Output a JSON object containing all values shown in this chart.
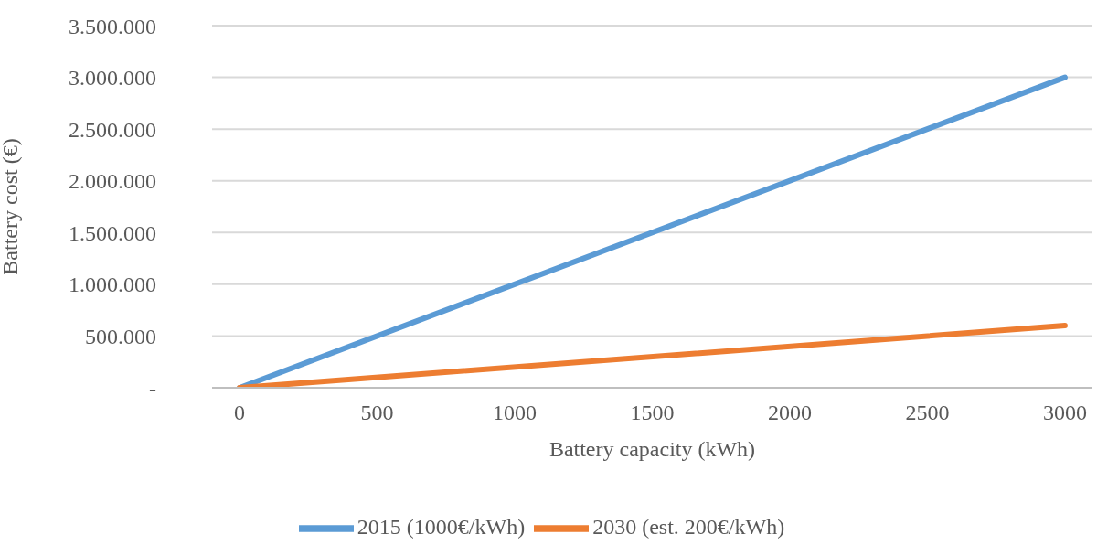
{
  "chart_data": {
    "type": "line",
    "xlabel": "Battery capacity (kWh)",
    "ylabel": "Battery cost (€)",
    "x": [
      0,
      3000
    ],
    "series": [
      {
        "name": "2015 (1000€/kWh)",
        "color": "#5b9bd5",
        "values": [
          0,
          3000000
        ]
      },
      {
        "name": "2030 (est. 200€/kWh)",
        "color": "#ed7d31",
        "values": [
          0,
          600000
        ]
      }
    ],
    "xlim": [
      -100,
      3100
    ],
    "xticks": [
      0,
      500,
      1000,
      1500,
      2000,
      2500,
      3000
    ],
    "ylim": [
      0,
      3500000
    ],
    "yticks": [
      {
        "value": 0,
        "label": "-"
      },
      {
        "value": 500000,
        "label": "500.000"
      },
      {
        "value": 1000000,
        "label": "1.000.000"
      },
      {
        "value": 1500000,
        "label": "1.500.000"
      },
      {
        "value": 2000000,
        "label": "2.000.000"
      },
      {
        "value": 2500000,
        "label": "2.500.000"
      },
      {
        "value": 3000000,
        "label": "3.000.000"
      },
      {
        "value": 3500000,
        "label": "3.500.000"
      }
    ],
    "grid": "y",
    "legend": "bottom",
    "marker": "none",
    "line_style": "solid"
  }
}
